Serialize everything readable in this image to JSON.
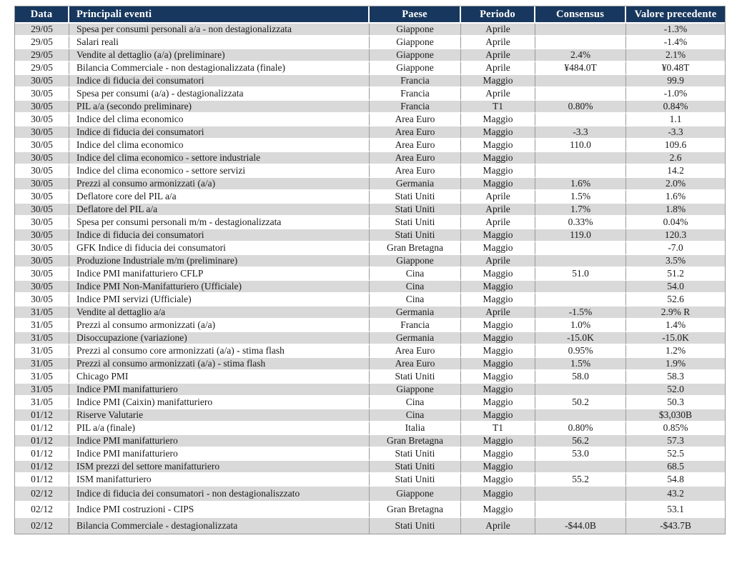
{
  "colors": {
    "header_bg": "#17375E",
    "header_text": "#FFFFFF",
    "row_alt_bg": "#D9D9D9",
    "row_bg": "#FFFFFF",
    "grid_line": "#999999",
    "text": "#1A1A1A"
  },
  "table": {
    "columns": [
      {
        "key": "data",
        "label": "Data"
      },
      {
        "key": "evento",
        "label": "Principali eventi"
      },
      {
        "key": "paese",
        "label": "Paese"
      },
      {
        "key": "periodo",
        "label": "Periodo"
      },
      {
        "key": "consensus",
        "label": "Consensus"
      },
      {
        "key": "valore",
        "label": "Valore precedente"
      }
    ],
    "rows": [
      [
        "29/05",
        "Spesa per consumi personali a/a - non destagionalizzata",
        "Giappone",
        "Aprile",
        "",
        "-1.3%"
      ],
      [
        "29/05",
        "Salari reali",
        "Giappone",
        "Aprile",
        "",
        "-1.4%"
      ],
      [
        "29/05",
        "Vendite al dettaglio (a/a)  (preliminare)",
        "Giappone",
        "Aprile",
        "2.4%",
        "2.1%"
      ],
      [
        "29/05",
        "Bilancia Commerciale -  non destagionalizzata (finale)",
        "Giappone",
        "Aprile",
        "¥484.0T",
        "¥0.48T"
      ],
      [
        "30/05",
        "Indice di fiducia dei consumatori",
        "Francia",
        "Maggio",
        "",
        "99.9"
      ],
      [
        "30/05",
        "Spesa per consumi  (a/a) - destagionalizzata",
        "Francia",
        "Aprile",
        "",
        "-1.0%"
      ],
      [
        "30/05",
        "PIL a/a (secondo preliminare)",
        "Francia",
        "T1",
        "0.80%",
        "0.84%"
      ],
      [
        "30/05",
        "Indice del clima economico",
        "Area Euro",
        "Maggio",
        "",
        "1.1"
      ],
      [
        "30/05",
        "Indice di fiducia dei consumatori",
        "Area Euro",
        "Maggio",
        "-3.3",
        "-3.3"
      ],
      [
        "30/05",
        "Indice del clima economico",
        "Area Euro",
        "Maggio",
        "110.0",
        "109.6"
      ],
      [
        "30/05",
        "Indice del clima economico - settore industriale",
        "Area Euro",
        "Maggio",
        "",
        "2.6"
      ],
      [
        "30/05",
        "Indice del clima economico - settore servizi",
        "Area Euro",
        "Maggio",
        "",
        "14.2"
      ],
      [
        "30/05",
        "Prezzi al consumo armonizzati (a/a)",
        "Germania",
        "Maggio",
        "1.6%",
        "2.0%"
      ],
      [
        "30/05",
        "Deflatore  core del PIL a/a",
        "Stati Uniti",
        "Aprile",
        "1.5%",
        "1.6%"
      ],
      [
        "30/05",
        "Deflatore del PIL a/a",
        "Stati Uniti",
        "Aprile",
        "1.7%",
        "1.8%"
      ],
      [
        "30/05",
        "Spesa per consumi personali m/m - destagionalizzata",
        "Stati Uniti",
        "Aprile",
        "0.33%",
        "0.04%"
      ],
      [
        "30/05",
        "Indice di fiducia dei consumatori",
        "Stati Uniti",
        "Maggio",
        "119.0",
        "120.3"
      ],
      [
        "30/05",
        "GFK Indice di fiducia dei consumatori",
        "Gran Bretagna",
        "Maggio",
        "",
        "-7.0"
      ],
      [
        "30/05",
        "Produzione Industriale m/m (preliminare)",
        "Giappone",
        "Aprile",
        "",
        "3.5%"
      ],
      [
        "30/05",
        "Indice PMI manifatturiero CFLP",
        "Cina",
        "Maggio",
        "51.0",
        "51.2"
      ],
      [
        "30/05",
        "Indice PMI  Non-Manifatturiero (Ufficiale)",
        "Cina",
        "Maggio",
        "",
        "54.0"
      ],
      [
        "30/05",
        "Indice PMI  servizi (Ufficiale)",
        "Cina",
        "Maggio",
        "",
        "52.6"
      ],
      [
        "31/05",
        "Vendite al dettaglio a/a",
        "Germania",
        "Aprile",
        "-1.5%",
        "2.9% R"
      ],
      [
        "31/05",
        "Prezzi al consumo armonizzati (a/a)",
        "Francia",
        "Maggio",
        "1.0%",
        "1.4%"
      ],
      [
        "31/05",
        "Disoccupazione (variazione)",
        "Germania",
        "Maggio",
        "-15.0K",
        "-15.0K"
      ],
      [
        "31/05",
        "Prezzi al consumo core armonizzati (a/a) - stima flash",
        "Area Euro",
        "Maggio",
        "0.95%",
        "1.2%"
      ],
      [
        "31/05",
        "Prezzi al consumo armonizzati (a/a) - stima flash",
        "Area Euro",
        "Maggio",
        "1.5%",
        "1.9%"
      ],
      [
        "31/05",
        "Chicago PMI",
        "Stati Uniti",
        "Maggio",
        "58.0",
        "58.3"
      ],
      [
        "31/05",
        "Indice PMI manifatturiero",
        "Giappone",
        "Maggio",
        "",
        "52.0"
      ],
      [
        "31/05",
        "Indice PMI (Caixin) manifatturiero",
        "Cina",
        "Maggio",
        "50.2",
        "50.3"
      ],
      [
        "01/12",
        "Riserve Valutarie",
        "Cina",
        "Maggio",
        "",
        "$3,030B"
      ],
      [
        "01/12",
        "PIL a/a (finale)",
        "Italia",
        "T1",
        "0.80%",
        "0.85%"
      ],
      [
        "01/12",
        "Indice PMI manifatturiero",
        "Gran Bretagna",
        "Maggio",
        "56.2",
        "57.3"
      ],
      [
        "01/12",
        "Indice PMI manifatturiero",
        "Stati Uniti",
        "Maggio",
        "53.0",
        "52.5"
      ],
      [
        "01/12",
        "ISM  prezzi del settore manifatturiero",
        "Stati Uniti",
        "Maggio",
        "",
        "68.5"
      ],
      [
        "01/12",
        "ISM manifatturiero",
        "Stati Uniti",
        "Maggio",
        "55.2",
        "54.8"
      ],
      [
        "02/12",
        "Indice di fiducia dei consumatori - non destagionaliszzato",
        "Giappone",
        "Maggio",
        "",
        "43.2"
      ],
      [
        "02/12",
        "Indice PMI costruzioni - CIPS",
        "Gran Bretagna",
        "Maggio",
        "",
        "53.1"
      ],
      [
        "02/12",
        "Bilancia Commerciale - destagionalizzata",
        "Stati Uniti",
        "Aprile",
        "-$44.0B",
        "-$43.7B"
      ]
    ]
  }
}
